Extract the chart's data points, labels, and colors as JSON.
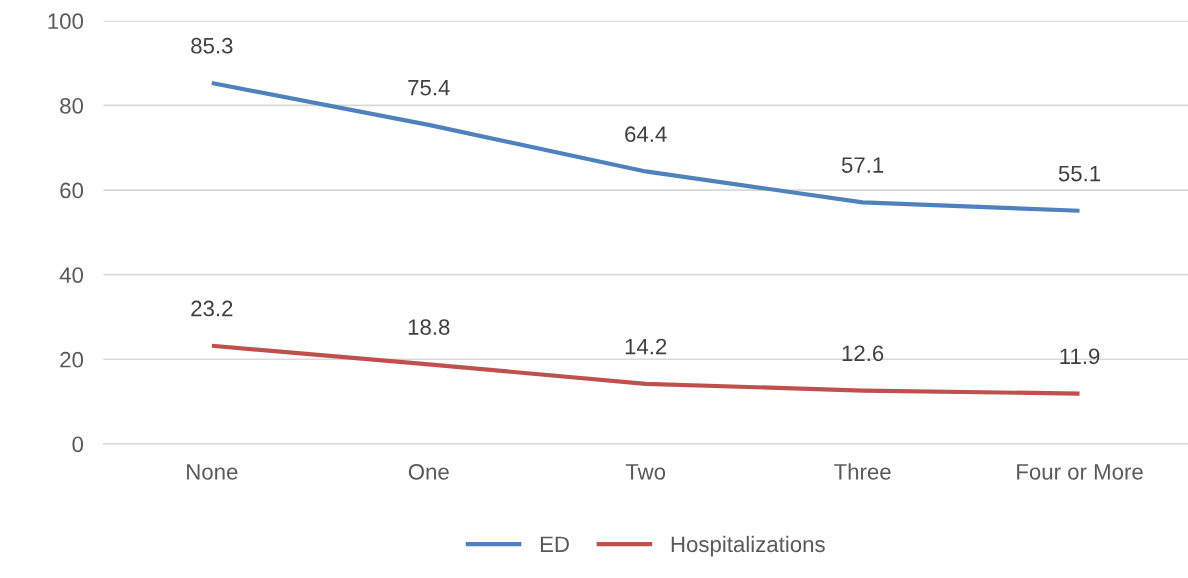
{
  "chart_data": {
    "type": "line",
    "categories": [
      "None",
      "One",
      "Two",
      "Three",
      "Four or More"
    ],
    "series": [
      {
        "name": "ED",
        "color": "#4f81bd",
        "values": [
          85.3,
          75.4,
          64.4,
          57.1,
          55.1
        ]
      },
      {
        "name": "Hospitalizations",
        "color": "#c0504d",
        "values": [
          23.2,
          18.8,
          14.2,
          12.6,
          11.9
        ]
      }
    ],
    "ylim": [
      0,
      100
    ],
    "yticks": [
      0,
      20,
      40,
      60,
      80,
      100
    ],
    "grid": "y",
    "legend": "bottom",
    "data_labels": true,
    "marker": "none",
    "line_style": "solid"
  }
}
